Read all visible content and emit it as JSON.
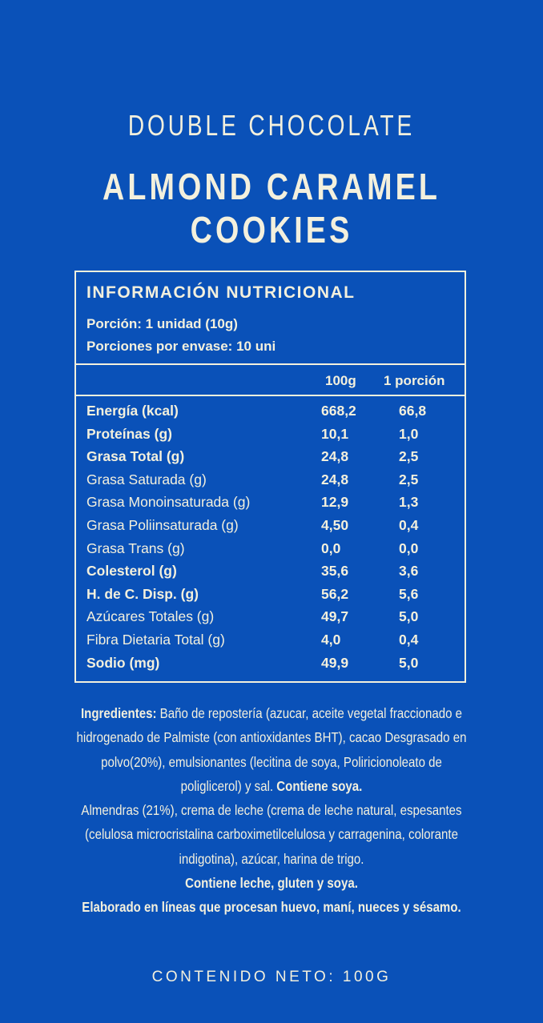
{
  "colors": {
    "background": "#0a51b8",
    "text": "#f3f0dd"
  },
  "title_line1": "DOUBLE CHOCOLATE",
  "title_line2": "ALMOND CARAMEL COOKIES",
  "nutrition": {
    "heading": "INFORMACIÓN NUTRICIONAL",
    "serving": "Porción: 1 unidad (10g)",
    "servings_per_container": "Porciones por envase: 10 uni",
    "columns": [
      "100g",
      "1 porción"
    ],
    "rows": [
      {
        "name": "Energía (kcal)",
        "per100": "668,2",
        "portion": "66,8",
        "bold": true
      },
      {
        "name": "Proteínas (g)",
        "per100": "10,1",
        "portion": "1,0",
        "bold": true
      },
      {
        "name": "Grasa Total (g)",
        "per100": "24,8",
        "portion": "2,5",
        "bold": true
      },
      {
        "name": "Grasa Saturada (g)",
        "per100": "24,8",
        "portion": "2,5",
        "bold": false
      },
      {
        "name": "Grasa Monoinsaturada (g)",
        "per100": "12,9",
        "portion": "1,3",
        "bold": false
      },
      {
        "name": "Grasa Poliinsaturada (g)",
        "per100": "4,50",
        "portion": "0,4",
        "bold": false
      },
      {
        "name": "Grasa Trans (g)",
        "per100": "0,0",
        "portion": "0,0",
        "bold": false
      },
      {
        "name": "Colesterol (g)",
        "per100": "35,6",
        "portion": "3,6",
        "bold": true
      },
      {
        "name": "H. de C. Disp. (g)",
        "per100": "56,2",
        "portion": "5,6",
        "bold": true
      },
      {
        "name": "Azúcares Totales (g)",
        "per100": "49,7",
        "portion": "5,0",
        "bold": false
      },
      {
        "name": "Fibra Dietaria Total (g)",
        "per100": "4,0",
        "portion": "0,4",
        "bold": false
      },
      {
        "name": "Sodio (mg)",
        "per100": "49,9",
        "portion": "5,0",
        "bold": true
      }
    ]
  },
  "ingredients": {
    "label": "Ingredientes:",
    "l1": " Baño de repostería (azucar, aceite vegetal fraccionado e",
    "l2": "hidrogenado de Palmiste (con antioxidantes BHT), cacao Desgrasado en",
    "l3": "polvo(20%), emulsionantes (lecitina de soya, Poliricionoleato de",
    "l4": "poliglicerol) y sal. ",
    "l4_bold": "Contiene soya.",
    "l5": "Almendras (21%), crema de leche (crema de leche natural, espesantes",
    "l6": "(celulosa microcristalina carboximetilcelulosa y carragenina, colorante",
    "l7": "indigotina), azúcar, harina de trigo.",
    "l8": "Contiene leche, gluten y soya.",
    "l9": "Elaborado en líneas que procesan huevo, maní, nueces y sésamo."
  },
  "net_content": "CONTENIDO NETO: 100G"
}
